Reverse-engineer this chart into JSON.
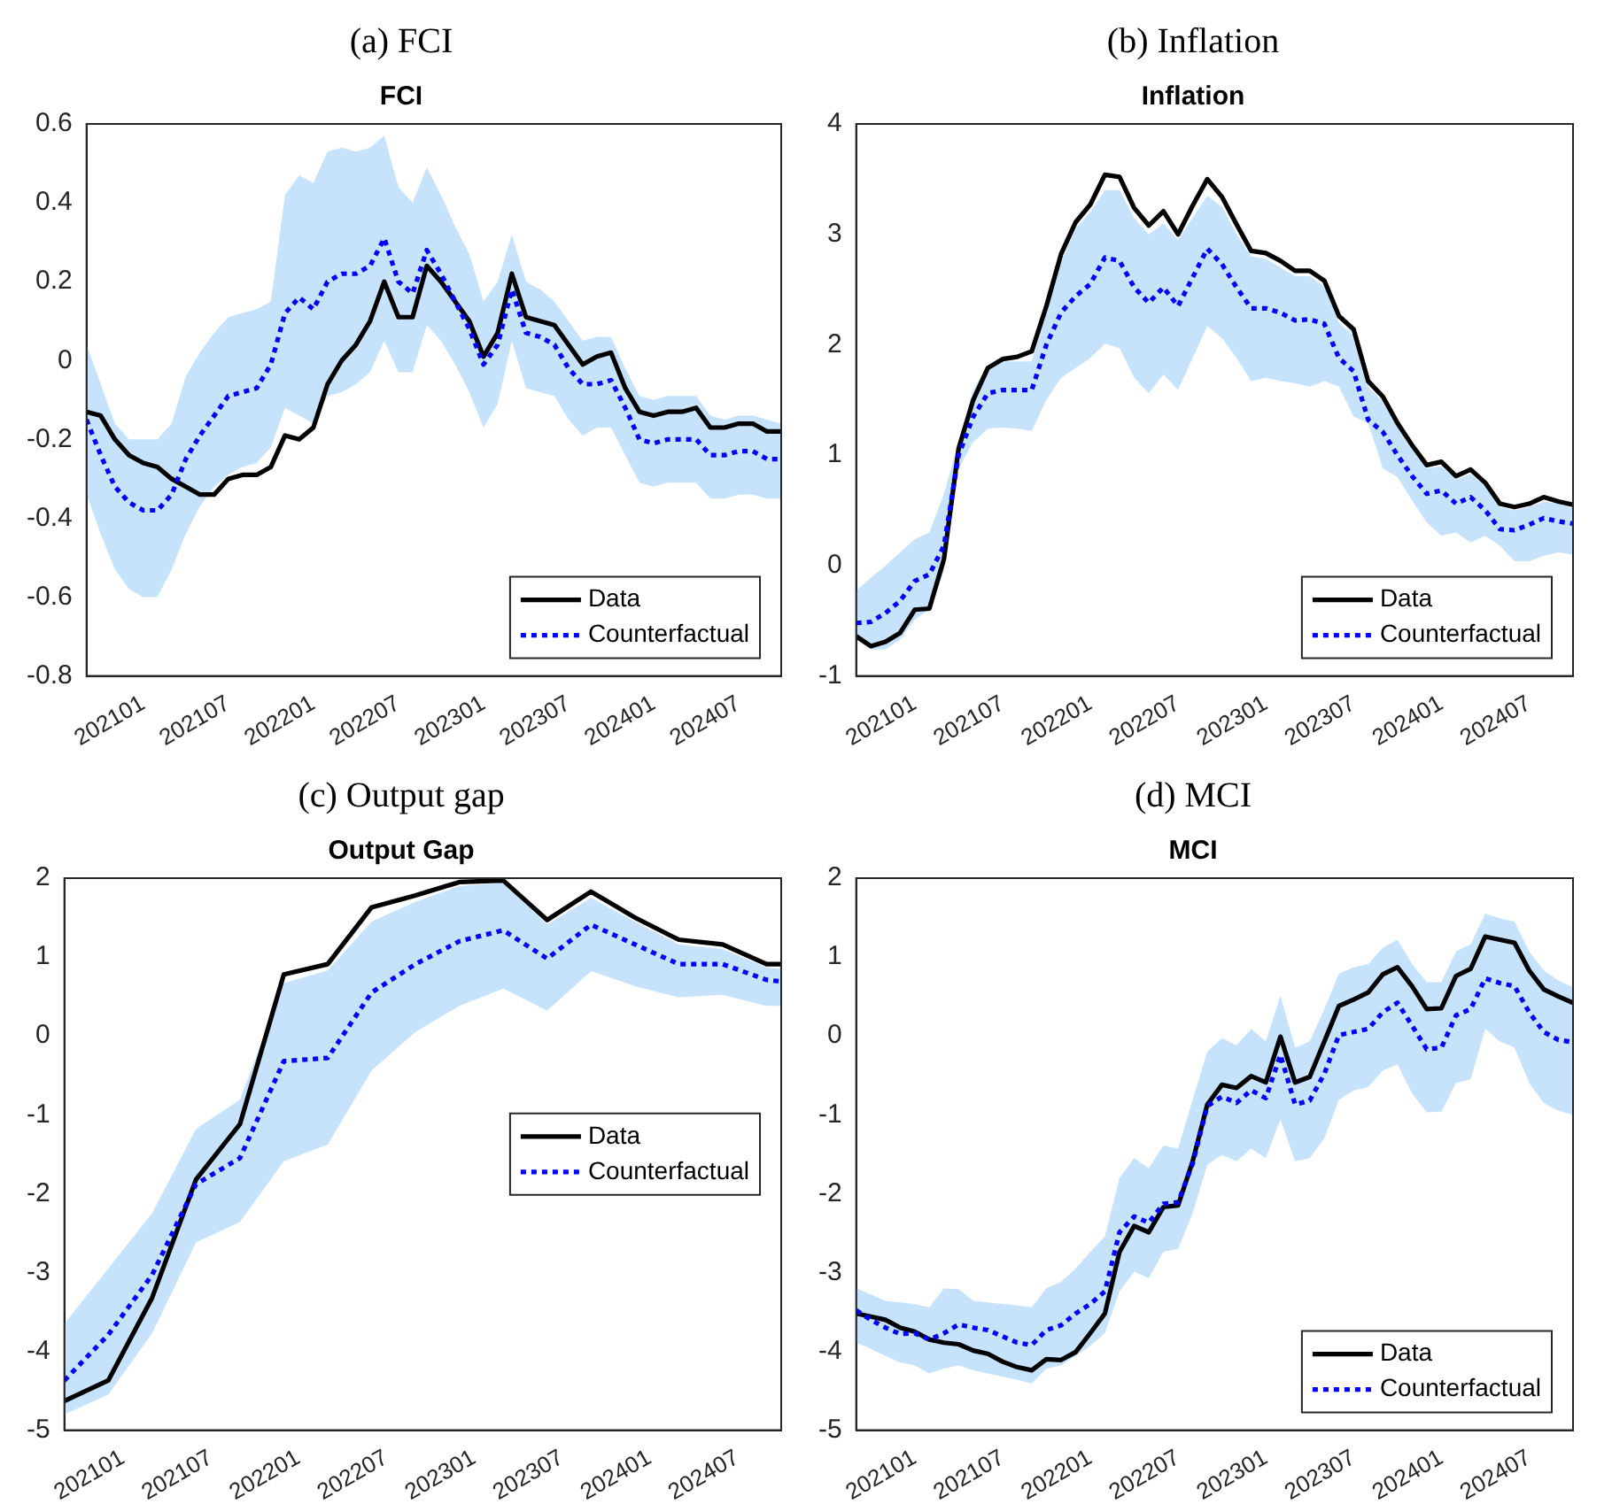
{
  "chart_data": [
    {
      "type": "line",
      "title": "(a) FCI",
      "subtitle": "FCI",
      "legend": "bottom right",
      "marker": "none",
      "grid": false,
      "x": [
        "2020-09",
        "2020-10",
        "2020-11",
        "2020-12",
        "2021-01",
        "2021-02",
        "2021-03",
        "2021-04",
        "2021-05",
        "2021-06",
        "2021-07",
        "2021-08",
        "2021-09",
        "2021-10",
        "2021-11",
        "2021-12",
        "2022-01",
        "2022-02",
        "2022-03",
        "2022-04",
        "2022-05",
        "2022-06",
        "2022-07",
        "2022-08",
        "2022-09",
        "2022-10",
        "2022-11",
        "2022-12",
        "2023-01",
        "2023-02",
        "2023-03",
        "2023-04",
        "2023-05",
        "2023-06",
        "2023-07",
        "2023-08",
        "2023-09",
        "2023-10",
        "2023-11",
        "2023-12",
        "2024-01",
        "2024-02",
        "2024-03",
        "2024-04",
        "2024-05",
        "2024-06",
        "2024-07",
        "2024-08",
        "2024-09",
        "2024-10"
      ],
      "xlim": [
        "2020-09",
        "2024-10"
      ],
      "xticks": [
        {
          "value": "2021-01",
          "label": "202101"
        },
        {
          "value": "2021-07",
          "label": "202107"
        },
        {
          "value": "2022-01",
          "label": "202201"
        },
        {
          "value": "2022-07",
          "label": "202207"
        },
        {
          "value": "2023-01",
          "label": "202301"
        },
        {
          "value": "2023-07",
          "label": "202307"
        },
        {
          "value": "2024-01",
          "label": "202401"
        },
        {
          "value": "2024-07",
          "label": "202407"
        }
      ],
      "ylim": [
        -0.8,
        0.6
      ],
      "yticks": [
        -0.8,
        -0.6,
        -0.4,
        -0.2,
        0,
        0.2,
        0.4,
        0.6
      ],
      "series": [
        {
          "name": "Data",
          "color": "#000000",
          "line_style": "solid",
          "values": [
            -0.13,
            -0.14,
            -0.2,
            -0.24,
            -0.26,
            -0.27,
            -0.3,
            -0.32,
            -0.34,
            -0.34,
            -0.3,
            -0.29,
            -0.29,
            -0.27,
            -0.19,
            -0.2,
            -0.17,
            -0.06,
            0,
            0.04,
            0.1,
            0.2,
            0.11,
            0.11,
            0.24,
            0.2,
            0.15,
            0.1,
            0.01,
            0.07,
            0.22,
            0.11,
            0.1,
            0.09,
            0.04,
            -0.01,
            0.01,
            0.02,
            -0.07,
            -0.13,
            -0.14,
            -0.13,
            -0.13,
            -0.12,
            -0.17,
            -0.17,
            -0.16,
            -0.16,
            -0.18,
            -0.18
          ]
        },
        {
          "name": "Counterfactual",
          "color": "#0000ff",
          "line_style": "dotted",
          "values": [
            -0.15,
            -0.24,
            -0.32,
            -0.36,
            -0.38,
            -0.38,
            -0.34,
            -0.25,
            -0.19,
            -0.14,
            -0.09,
            -0.08,
            -0.07,
            -0.01,
            0.12,
            0.16,
            0.13,
            0.2,
            0.22,
            0.22,
            0.24,
            0.31,
            0.2,
            0.17,
            0.28,
            0.22,
            0.15,
            0.08,
            -0.01,
            0.04,
            0.18,
            0.07,
            0.06,
            0.04,
            -0.02,
            -0.06,
            -0.06,
            -0.05,
            -0.12,
            -0.2,
            -0.21,
            -0.2,
            -0.2,
            -0.2,
            -0.24,
            -0.24,
            -0.23,
            -0.23,
            -0.25,
            -0.25
          ],
          "upper": [
            0.04,
            -0.06,
            -0.16,
            -0.2,
            -0.2,
            -0.2,
            -0.16,
            -0.04,
            0.02,
            0.07,
            0.11,
            0.12,
            0.13,
            0.15,
            0.42,
            0.47,
            0.45,
            0.53,
            0.54,
            0.53,
            0.54,
            0.57,
            0.44,
            0.4,
            0.49,
            0.42,
            0.34,
            0.27,
            0.15,
            0.2,
            0.32,
            0.2,
            0.18,
            0.15,
            0.1,
            0.05,
            0.06,
            0.06,
            -0.02,
            -0.09,
            -0.1,
            -0.09,
            -0.09,
            -0.09,
            -0.14,
            -0.15,
            -0.14,
            -0.14,
            -0.15,
            -0.16
          ],
          "lower": [
            -0.34,
            -0.44,
            -0.53,
            -0.58,
            -0.6,
            -0.6,
            -0.53,
            -0.44,
            -0.37,
            -0.32,
            -0.29,
            -0.27,
            -0.26,
            -0.22,
            -0.12,
            -0.14,
            -0.16,
            -0.09,
            -0.08,
            -0.06,
            -0.03,
            0.05,
            -0.03,
            -0.03,
            0.09,
            0.05,
            -0.01,
            -0.08,
            -0.17,
            -0.11,
            0.05,
            -0.07,
            -0.08,
            -0.09,
            -0.15,
            -0.19,
            -0.17,
            -0.17,
            -0.24,
            -0.31,
            -0.32,
            -0.31,
            -0.31,
            -0.31,
            -0.35,
            -0.35,
            -0.34,
            -0.34,
            -0.35,
            -0.35
          ]
        }
      ]
    },
    {
      "type": "line",
      "title": "(b) Inflation",
      "subtitle": "Inflation",
      "legend": "bottom right",
      "marker": "none",
      "grid": false,
      "x": [
        "2020-09",
        "2020-10",
        "2020-11",
        "2020-12",
        "2021-01",
        "2021-02",
        "2021-03",
        "2021-04",
        "2021-05",
        "2021-06",
        "2021-07",
        "2021-08",
        "2021-09",
        "2021-10",
        "2021-11",
        "2021-12",
        "2022-01",
        "2022-02",
        "2022-03",
        "2022-04",
        "2022-05",
        "2022-06",
        "2022-07",
        "2022-08",
        "2022-09",
        "2022-10",
        "2022-11",
        "2022-12",
        "2023-01",
        "2023-02",
        "2023-03",
        "2023-04",
        "2023-05",
        "2023-06",
        "2023-07",
        "2023-08",
        "2023-09",
        "2023-10",
        "2023-11",
        "2023-12",
        "2024-01",
        "2024-02",
        "2024-03",
        "2024-04",
        "2024-05",
        "2024-06",
        "2024-07",
        "2024-08",
        "2024-09",
        "2024-10"
      ],
      "xlim": [
        "2020-09",
        "2024-10"
      ],
      "xticks": [
        {
          "value": "2021-01",
          "label": "202101"
        },
        {
          "value": "2021-07",
          "label": "202107"
        },
        {
          "value": "2022-01",
          "label": "202201"
        },
        {
          "value": "2022-07",
          "label": "202207"
        },
        {
          "value": "2023-01",
          "label": "202301"
        },
        {
          "value": "2023-07",
          "label": "202307"
        },
        {
          "value": "2024-01",
          "label": "202401"
        },
        {
          "value": "2024-07",
          "label": "202407"
        }
      ],
      "ylim": [
        -1,
        4
      ],
      "yticks": [
        -1,
        0,
        1,
        2,
        3,
        4
      ],
      "series": [
        {
          "name": "Data",
          "color": "#000000",
          "line_style": "solid",
          "values": [
            -0.64,
            -0.73,
            -0.69,
            -0.61,
            -0.4,
            -0.39,
            0.06,
            1.06,
            1.5,
            1.79,
            1.87,
            1.89,
            1.94,
            2.35,
            2.82,
            3.11,
            3.27,
            3.54,
            3.52,
            3.24,
            3.08,
            3.21,
            3,
            3.26,
            3.5,
            3.34,
            3.09,
            2.85,
            2.83,
            2.76,
            2.67,
            2.67,
            2.58,
            2.26,
            2.14,
            1.67,
            1.53,
            1.29,
            1.09,
            0.91,
            0.94,
            0.81,
            0.87,
            0.75,
            0.56,
            0.53,
            0.56,
            0.62,
            0.58,
            0.55
          ]
        },
        {
          "name": "Counterfactual",
          "color": "#0000ff",
          "line_style": "dotted",
          "values": [
            -0.52,
            -0.51,
            -0.43,
            -0.32,
            -0.14,
            -0.08,
            0.18,
            1,
            1.35,
            1.56,
            1.59,
            1.59,
            1.59,
            2,
            2.29,
            2.44,
            2.55,
            2.79,
            2.76,
            2.52,
            2.38,
            2.52,
            2.35,
            2.61,
            2.87,
            2.73,
            2.52,
            2.33,
            2.33,
            2.29,
            2.22,
            2.23,
            2.19,
            1.88,
            1.76,
            1.32,
            1.21,
            1,
            0.81,
            0.65,
            0.68,
            0.56,
            0.62,
            0.5,
            0.33,
            0.32,
            0.37,
            0.43,
            0.4,
            0.38
          ],
          "upper": [
            -0.23,
            -0.11,
            0,
            0.12,
            0.24,
            0.3,
            0.65,
            1.12,
            1.59,
            1.82,
            1.85,
            1.85,
            1.85,
            2.3,
            2.75,
            3.05,
            3.2,
            3.4,
            3.4,
            3.15,
            3,
            3.1,
            2.95,
            3.15,
            3.35,
            3.25,
            3,
            2.8,
            2.78,
            2.7,
            2.62,
            2.62,
            2.53,
            2.2,
            2.08,
            1.62,
            1.48,
            1.25,
            1.05,
            0.88,
            0.9,
            0.78,
            0.83,
            0.72,
            0.53,
            0.5,
            0.53,
            0.58,
            0.56,
            0.52
          ],
          "lower": [
            -0.67,
            -0.76,
            -0.76,
            -0.67,
            -0.49,
            -0.4,
            -0.05,
            0.88,
            1.12,
            1.24,
            1.25,
            1.24,
            1.22,
            1.5,
            1.7,
            1.79,
            1.88,
            2.01,
            1.97,
            1.7,
            1.56,
            1.73,
            1.59,
            1.88,
            2.17,
            2.06,
            1.88,
            1.67,
            1.7,
            1.67,
            1.65,
            1.62,
            1.67,
            1.62,
            1.35,
            1.29,
            0.88,
            0.8,
            0.59,
            0.39,
            0.27,
            0.3,
            0.21,
            0.27,
            0.18,
            0.04,
            0.04,
            0.09,
            0.12,
            0.1
          ]
        }
      ]
    },
    {
      "type": "line",
      "title": "(c) Output gap",
      "subtitle": "Output Gap",
      "legend": "right",
      "marker": "none",
      "grid": false,
      "x": [
        "2020-09",
        "2020-12",
        "2021-03",
        "2021-06",
        "2021-09",
        "2021-12",
        "2022-03",
        "2022-06",
        "2022-09",
        "2022-12",
        "2023-03",
        "2023-06",
        "2023-09",
        "2023-12",
        "2024-03",
        "2024-06",
        "2024-09",
        "2024-10"
      ],
      "xlim": [
        "2020-09",
        "2024-10"
      ],
      "xticks": [
        {
          "value": "2021-01",
          "label": "202101"
        },
        {
          "value": "2021-07",
          "label": "202107"
        },
        {
          "value": "2022-01",
          "label": "202201"
        },
        {
          "value": "2022-07",
          "label": "202207"
        },
        {
          "value": "2023-01",
          "label": "202301"
        },
        {
          "value": "2023-07",
          "label": "202307"
        },
        {
          "value": "2024-01",
          "label": "202401"
        },
        {
          "value": "2024-07",
          "label": "202407"
        }
      ],
      "ylim": [
        -5,
        2
      ],
      "yticks": [
        -5,
        -4,
        -3,
        -2,
        -1,
        0,
        1,
        2
      ],
      "series": [
        {
          "name": "Data",
          "color": "#000000",
          "line_style": "solid",
          "values": [
            -4.63,
            -4.37,
            -3.32,
            -1.82,
            -1.12,
            0.78,
            0.91,
            1.63,
            1.78,
            1.95,
            1.97,
            1.47,
            1.83,
            1.5,
            1.22,
            1.16,
            0.91,
            0.91
          ]
        },
        {
          "name": "Counterfactual",
          "color": "#0000ff",
          "line_style": "dotted",
          "values": [
            -4.37,
            -3.79,
            -3.03,
            -1.88,
            -1.55,
            -0.32,
            -0.28,
            0.55,
            0.91,
            1.2,
            1.34,
            0.98,
            1.41,
            1.16,
            0.91,
            0.91,
            0.71,
            0.69
          ],
          "upper": [
            -3.65,
            -2.95,
            -2.25,
            -1.18,
            -0.81,
            0.67,
            0.83,
            1.45,
            1.7,
            1.9,
            1.94,
            1.41,
            1.75,
            1.45,
            1.16,
            1.1,
            0.87,
            0.85
          ],
          "lower": [
            -4.8,
            -4.55,
            -3.77,
            -2.62,
            -2.36,
            -1.59,
            -1.38,
            -0.44,
            0.05,
            0.38,
            0.6,
            0.32,
            0.82,
            0.63,
            0.49,
            0.52,
            0.38,
            0.38
          ]
        }
      ]
    },
    {
      "type": "line",
      "title": "(d) MCI",
      "subtitle": "MCI",
      "legend": "bottom right",
      "marker": "none",
      "grid": false,
      "x": [
        "2020-09",
        "2020-10",
        "2020-11",
        "2020-12",
        "2021-01",
        "2021-02",
        "2021-03",
        "2021-04",
        "2021-05",
        "2021-06",
        "2021-07",
        "2021-08",
        "2021-09",
        "2021-10",
        "2021-11",
        "2021-12",
        "2022-01",
        "2022-02",
        "2022-03",
        "2022-04",
        "2022-05",
        "2022-06",
        "2022-07",
        "2022-08",
        "2022-09",
        "2022-10",
        "2022-11",
        "2022-12",
        "2023-01",
        "2023-02",
        "2023-03",
        "2023-04",
        "2023-05",
        "2023-06",
        "2023-07",
        "2023-08",
        "2023-09",
        "2023-10",
        "2023-11",
        "2023-12",
        "2024-01",
        "2024-02",
        "2024-03",
        "2024-04",
        "2024-05",
        "2024-06",
        "2024-07",
        "2024-08",
        "2024-09",
        "2024-10"
      ],
      "xlim": [
        "2020-09",
        "2024-10"
      ],
      "xticks": [
        {
          "value": "2021-01",
          "label": "202101"
        },
        {
          "value": "2021-07",
          "label": "202107"
        },
        {
          "value": "2022-01",
          "label": "202201"
        },
        {
          "value": "2022-07",
          "label": "202207"
        },
        {
          "value": "2023-01",
          "label": "202301"
        },
        {
          "value": "2023-07",
          "label": "202307"
        },
        {
          "value": "2024-01",
          "label": "202401"
        },
        {
          "value": "2024-07",
          "label": "202407"
        }
      ],
      "ylim": [
        -5,
        2
      ],
      "yticks": [
        -5,
        -4,
        -3,
        -2,
        -1,
        0,
        1,
        2
      ],
      "series": [
        {
          "name": "Data",
          "color": "#000000",
          "line_style": "solid",
          "values": [
            -3.52,
            -3.56,
            -3.6,
            -3.7,
            -3.75,
            -3.85,
            -3.89,
            -3.91,
            -3.99,
            -4.03,
            -4.13,
            -4.2,
            -4.24,
            -4.1,
            -4.11,
            -4.01,
            -3.77,
            -3.52,
            -2.74,
            -2.41,
            -2.49,
            -2.17,
            -2.15,
            -1.59,
            -0.87,
            -0.62,
            -0.66,
            -0.51,
            -0.59,
            -0.01,
            -0.59,
            -0.52,
            -0.07,
            0.38,
            0.46,
            0.55,
            0.78,
            0.87,
            0.63,
            0.34,
            0.35,
            0.76,
            0.85,
            1.26,
            1.22,
            1.18,
            0.83,
            0.59,
            0.5,
            0.42
          ]
        },
        {
          "name": "Counterfactual",
          "color": "#0000ff",
          "line_style": "dotted",
          "values": [
            -3.48,
            -3.6,
            -3.7,
            -3.78,
            -3.77,
            -3.85,
            -3.77,
            -3.66,
            -3.7,
            -3.73,
            -3.81,
            -3.89,
            -3.92,
            -3.73,
            -3.67,
            -3.52,
            -3.4,
            -3.24,
            -2.49,
            -2.29,
            -2.37,
            -2.13,
            -2.11,
            -1.62,
            -0.89,
            -0.77,
            -0.85,
            -0.69,
            -0.79,
            -0.24,
            -0.87,
            -0.82,
            -0.48,
            0.01,
            0.05,
            0.09,
            0.3,
            0.42,
            0.13,
            -0.17,
            -0.15,
            0.26,
            0.34,
            0.73,
            0.67,
            0.63,
            0.3,
            0.05,
            -0.05,
            -0.08
          ],
          "upper": [
            -3.2,
            -3.28,
            -3.36,
            -3.38,
            -3.4,
            -3.44,
            -3.2,
            -3.21,
            -3.36,
            -3.38,
            -3.4,
            -3.42,
            -3.44,
            -3.2,
            -3.12,
            -2.95,
            -2.74,
            -2.54,
            -1.8,
            -1.55,
            -1.68,
            -1.39,
            -1.43,
            -0.81,
            -0.2,
            -0.03,
            -0.12,
            0.09,
            -0.07,
            0.51,
            -0.15,
            -0.07,
            0.34,
            0.79,
            0.87,
            0.91,
            1.12,
            1.22,
            0.91,
            0.68,
            0.68,
            1.07,
            1.16,
            1.55,
            1.49,
            1.45,
            1.07,
            0.83,
            0.7,
            0.62
          ],
          "lower": [
            -3.89,
            -3.97,
            -4.06,
            -4.14,
            -4.18,
            -4.28,
            -4.22,
            -4.18,
            -4.24,
            -4.28,
            -4.32,
            -4.36,
            -4.41,
            -4.22,
            -4.18,
            -4.06,
            -3.93,
            -3.77,
            -3.24,
            -2.99,
            -3.07,
            -2.74,
            -2.7,
            -2.25,
            -1.63,
            -1.51,
            -1.59,
            -1.43,
            -1.55,
            -1.06,
            -1.59,
            -1.55,
            -1.3,
            -0.81,
            -0.69,
            -0.65,
            -0.44,
            -0.36,
            -0.73,
            -0.97,
            -0.96,
            -0.6,
            -0.55,
            0.09,
            -0.07,
            -0.15,
            -0.6,
            -0.85,
            -0.95,
            -1
          ]
        }
      ]
    }
  ]
}
